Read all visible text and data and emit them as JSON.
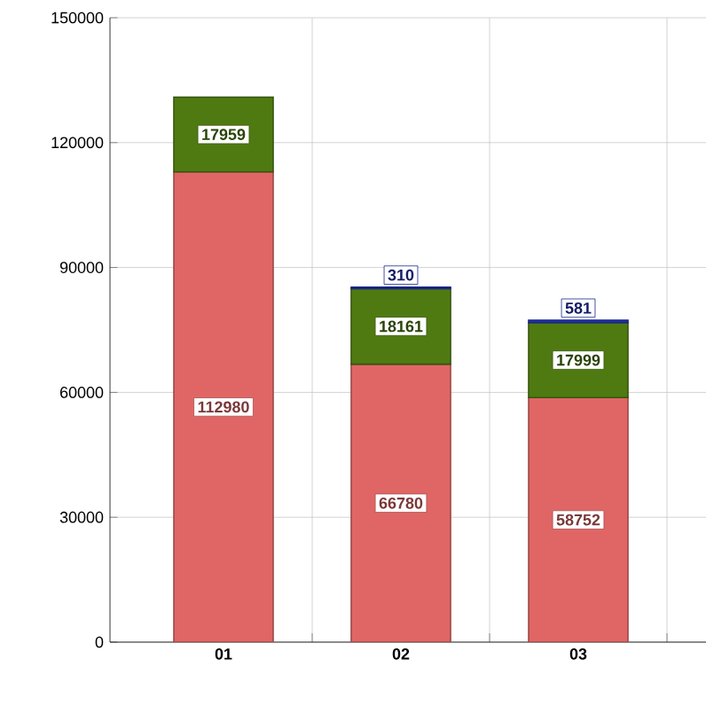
{
  "chart_data": {
    "type": "bar",
    "stacked": true,
    "categories": [
      "01",
      "02",
      "03"
    ],
    "series": [
      {
        "color": "#e06666",
        "values": [
          112980,
          66780,
          58752
        ]
      },
      {
        "color": "#4f7a12",
        "values": [
          17959,
          18161,
          17999
        ]
      },
      {
        "color": "#2233bb",
        "values": [
          null,
          310,
          581
        ]
      }
    ],
    "ylim": [
      0,
      150000
    ],
    "yticks": [
      0,
      30000,
      60000,
      90000,
      120000,
      150000
    ],
    "grid": true,
    "data_labels": true
  }
}
